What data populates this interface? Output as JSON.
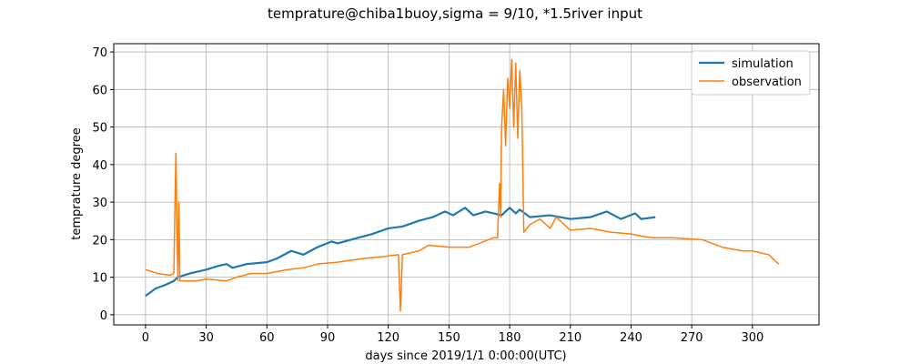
{
  "chart_data": {
    "type": "line",
    "title": "temprature@chiba1buoy,sigma = 9/10, *1.5river input",
    "x_label": "days since 2019/1/1 0:00:00(UTC)",
    "y_label": "temprature degree",
    "xlim": [
      -15.7,
      332.9
    ],
    "ylim": [
      -2.7,
      72.2
    ],
    "xticks": [
      0,
      30,
      60,
      90,
      120,
      150,
      180,
      210,
      240,
      270,
      300
    ],
    "yticks": [
      0,
      10,
      20,
      30,
      40,
      50,
      60,
      70
    ],
    "grid": true,
    "legend": "upper right",
    "series": [
      {
        "name": "simulation",
        "color": "#1f77b4",
        "width": 2.2,
        "x": [
          0,
          5,
          10,
          14,
          16,
          22,
          30,
          36,
          40,
          43,
          50,
          60,
          65,
          72,
          78,
          85,
          92,
          95,
          105,
          112,
          120,
          127,
          135,
          142,
          148,
          152,
          158,
          162,
          168,
          172,
          176,
          180,
          183,
          185,
          190,
          200,
          210,
          220,
          228,
          235,
          242,
          245,
          252
        ],
        "values": [
          5,
          7,
          8,
          9,
          10,
          11,
          12,
          13,
          13.5,
          12.5,
          13.5,
          14,
          15,
          17,
          16,
          18,
          19.5,
          19,
          20.5,
          21.5,
          23,
          23.5,
          25,
          26,
          27.5,
          26.5,
          28.5,
          26.5,
          27.5,
          27,
          26.5,
          28.5,
          27,
          28,
          26,
          26.5,
          25.5,
          26,
          27.5,
          25.5,
          27,
          25.5,
          26
        ]
      },
      {
        "name": "observation",
        "color": "#ff7f0e",
        "width": 1.5,
        "x": [
          0,
          6,
          12,
          14,
          15,
          16,
          16.5,
          17,
          25,
          30,
          40,
          45,
          52,
          60,
          70,
          78,
          85,
          95,
          108,
          118,
          125,
          126,
          127,
          135,
          140,
          150,
          160,
          165,
          172,
          174,
          175,
          175.5,
          176,
          177,
          178,
          179,
          180,
          181,
          182,
          183,
          184,
          185,
          186,
          187,
          190,
          195,
          200,
          203,
          210,
          220,
          230,
          240,
          245,
          250,
          260,
          275,
          285,
          295,
          300,
          308,
          313
        ],
        "values": [
          12,
          11,
          10.5,
          11,
          43,
          9,
          30,
          9,
          9,
          9.5,
          9,
          10,
          11,
          11,
          12,
          12.5,
          13.5,
          14,
          15,
          15.5,
          16,
          1,
          16,
          17,
          18.5,
          18,
          18,
          19,
          20.5,
          20.5,
          35,
          26,
          50,
          60,
          45,
          63,
          55,
          68,
          50,
          67,
          47,
          65,
          55,
          22,
          24,
          25.5,
          23,
          26,
          22.5,
          23,
          22,
          21.5,
          21,
          20.5,
          20.5,
          20,
          18,
          17,
          17,
          16,
          13.5
        ]
      }
    ]
  }
}
